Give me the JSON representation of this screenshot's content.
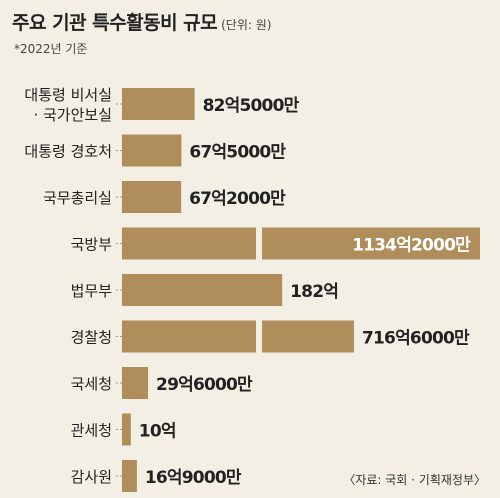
{
  "header": {
    "title": "주요 기관 특수활동비 규모",
    "unit": "(단위: 원)",
    "note": "*2022년 기준",
    "source": "〈자료: 국회 · 기획재정부〉"
  },
  "colors": {
    "bar": "#b08e5c",
    "background": "#f3efe4",
    "leader": "#999999",
    "inside_label": "#ffffff",
    "label": "#222222"
  },
  "chart_data": {
    "type": "bar",
    "orientation": "horizontal",
    "axis_break": true,
    "categories": [
      [
        "대통령 비서실",
        "· 국가안보실"
      ],
      [
        "대통령 경호처"
      ],
      [
        "국무총리실"
      ],
      [
        "국방부"
      ],
      [
        "법무부"
      ],
      [
        "경찰청"
      ],
      [
        "국세청"
      ],
      [
        "관세청"
      ],
      [
        "감사원"
      ]
    ],
    "values": [
      8250000000,
      6750000000,
      6720000000,
      113420000000,
      18200000000,
      71660000000,
      2960000000,
      1000000000,
      1690000000
    ],
    "data_labels": [
      "82억5000만",
      "67억5000만",
      "67억2000만",
      "1134억2000만",
      "182억",
      "716억6000만",
      "29억6000만",
      "10억",
      "16억9000만"
    ],
    "broken": [
      false,
      false,
      false,
      true,
      false,
      true,
      false,
      false,
      false
    ],
    "label_inside": [
      false,
      false,
      false,
      true,
      false,
      false,
      false,
      false,
      false
    ]
  }
}
